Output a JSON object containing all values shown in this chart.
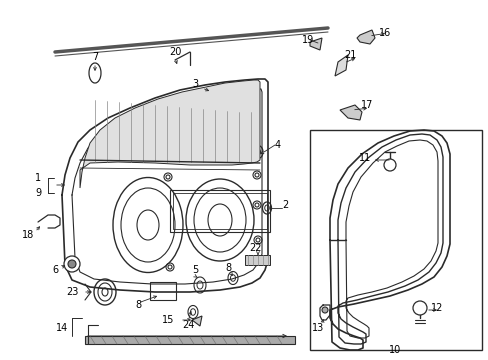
{
  "background": "#ffffff",
  "line_color": "#2a2a2a",
  "label_color": "#000000",
  "font_size": 7.0,
  "fig_w": 4.89,
  "fig_h": 3.6,
  "dpi": 100
}
